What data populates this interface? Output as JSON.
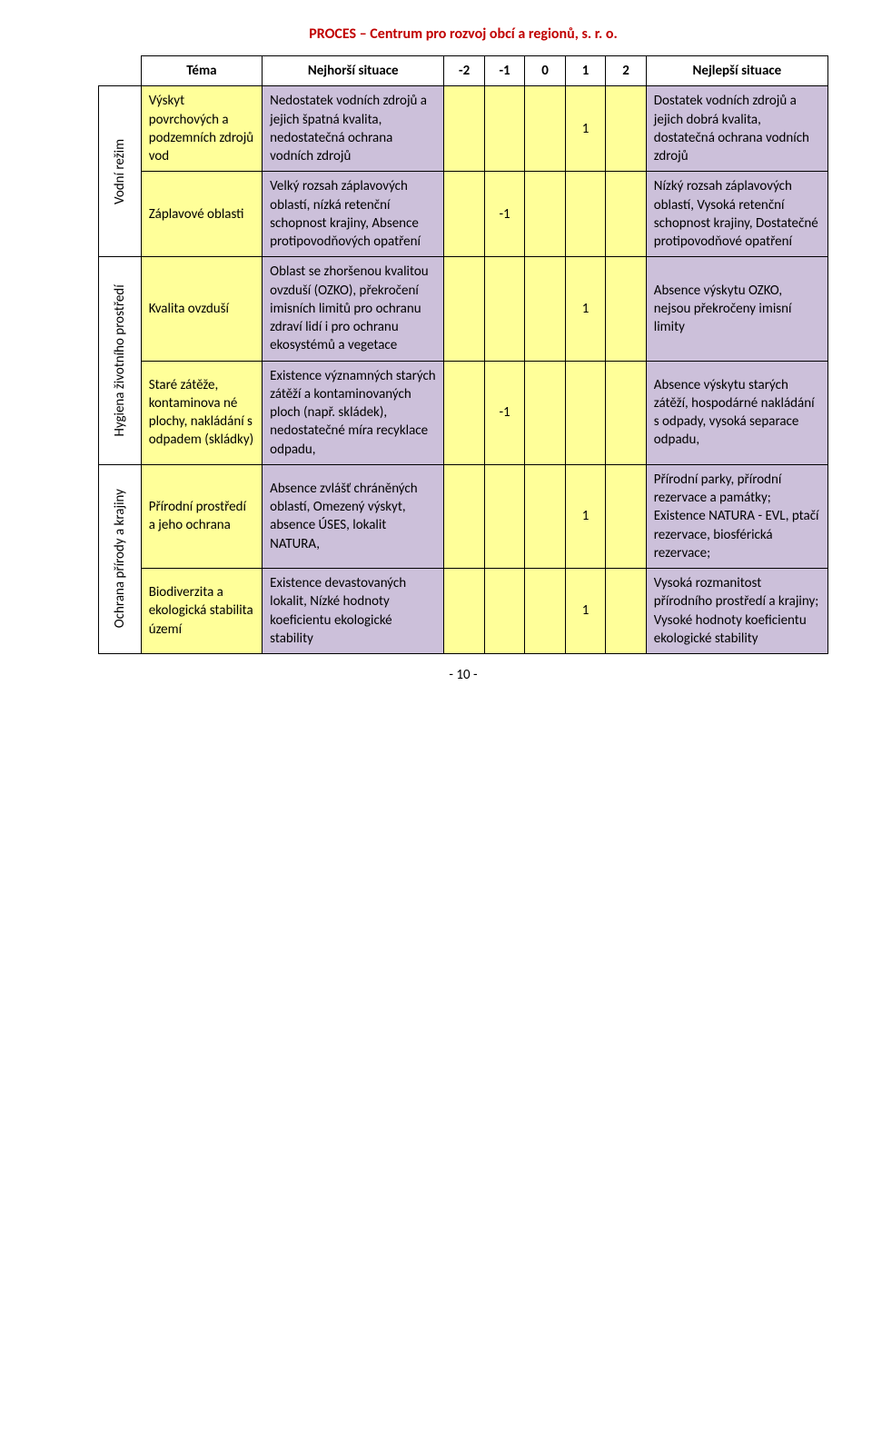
{
  "header": {
    "title": "PROCES – Centrum pro rozvoj obcí a regionů, s. r. o.",
    "color": "#c00000",
    "fontsize": 16
  },
  "footer": {
    "text": "- 10 -"
  },
  "colors": {
    "yellow": "#ffff99",
    "purple": "#ccc0da",
    "score_text": "#000000"
  },
  "table": {
    "head": {
      "theme": "Téma",
      "worst": "Nejhorší situace",
      "scores": [
        "-2",
        "-1",
        "0",
        "1",
        "2"
      ],
      "best": "Nejlepší situace"
    },
    "groups": [
      {
        "label": "Vodní režim",
        "rows": [
          {
            "theme": "Výskyt povrchových a podzemních zdrojů vod",
            "worst": "Nedostatek vodních zdrojů a jejich špatná kvalita, nedostatečná ochrana vodních zdrojů",
            "best": "Dostatek vodních zdrojů a jejich dobrá kvalita, dostatečná ochrana vodních zdrojů",
            "score_col": 3,
            "score_val": "1"
          },
          {
            "theme": "Záplavové oblasti",
            "worst": "Velký rozsah záplavových oblastí, nízká retenční schopnost krajiny, Absence protipovodňových opatření",
            "best": "Nízký rozsah záplavových oblastí, Vysoká retenční schopnost krajiny, Dostatečné protipovodňové opatření",
            "score_col": 1,
            "score_val": "-1"
          }
        ]
      },
      {
        "label": "Hygiena životního prostředí",
        "rows": [
          {
            "theme": "Kvalita ovzduší",
            "worst": "Oblast se zhoršenou kvalitou ovzduší (OZKO), překročení imisních limitů pro ochranu zdraví lidí i pro ochranu ekosystémů a vegetace",
            "best": "Absence výskytu OZKO, nejsou překročeny imisní limity",
            "score_col": 3,
            "score_val": "1"
          },
          {
            "theme": "Staré zátěže, kontaminova né plochy, nakládání s odpadem (skládky)",
            "worst": "Existence významných starých zátěží a kontaminovaných ploch (např. skládek), nedostatečné míra recyklace odpadu,",
            "best": "Absence výskytu starých zátěží, hospodárné nakládání s odpady, vysoká separace odpadu,",
            "score_col": 1,
            "score_val": "-1"
          }
        ]
      },
      {
        "label": "Ochrana přírody a krajiny",
        "rows": [
          {
            "theme": "Přírodní prostředí a jeho ochrana",
            "worst": "Absence zvlášť chráněných oblastí, Omezený výskyt, absence ÚSES, lokalit NATURA,",
            "best": "Přírodní parky, přírodní rezervace a památky; Existence NATURA - EVL, ptačí rezervace, biosférická rezervace;",
            "score_col": 3,
            "score_val": "1"
          },
          {
            "theme": "Biodiverzita a ekologická stabilita území",
            "worst": "Existence devastovaných lokalit, Nízké hodnoty koeficientu ekologické stability",
            "best": "Vysoká rozmanitost přírodního prostředí a krajiny; Vysoké hodnoty koeficientu ekologické stability",
            "score_col": 3,
            "score_val": "1"
          }
        ]
      }
    ]
  }
}
